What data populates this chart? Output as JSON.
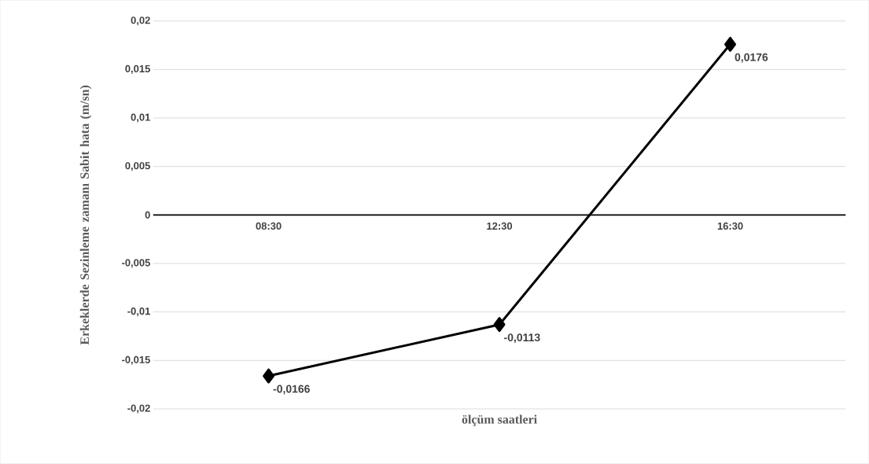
{
  "chart_data": {
    "type": "line",
    "xlabel": "ölçüm saatleri",
    "ylabel": "Erkeklerde Sezinleme zamanı Sabit hata (m/sn)",
    "categories": [
      "08:30",
      "12:30",
      "16:30"
    ],
    "values": [
      -0.0166,
      -0.0113,
      0.0176
    ],
    "value_labels": [
      "-0,0166",
      "-0,0113",
      "0,0176"
    ],
    "color": "#000000",
    "marker": "diamond",
    "line_style": "solid",
    "ylim": [
      -0.02,
      0.02
    ],
    "yticks": [
      {
        "value": -0.02,
        "label": "-0,02"
      },
      {
        "value": -0.015,
        "label": "-0,015"
      },
      {
        "value": -0.01,
        "label": "-0,01"
      },
      {
        "value": -0.005,
        "label": "-0,005"
      },
      {
        "value": 0,
        "label": "0"
      },
      {
        "value": 0.005,
        "label": "0,005"
      },
      {
        "value": 0.01,
        "label": "0,01"
      },
      {
        "value": 0.015,
        "label": "0,015"
      },
      {
        "value": 0.02,
        "label": "0,02"
      }
    ],
    "grid": "y"
  }
}
